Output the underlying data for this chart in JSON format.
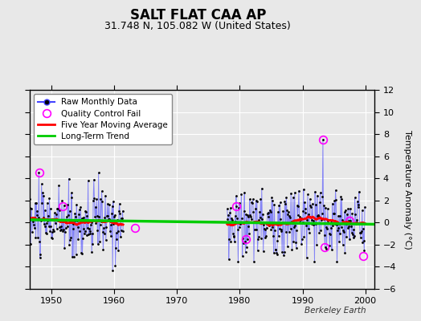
{
  "title": "SALT FLAT CAA AP",
  "subtitle": "31.748 N, 105.082 W (United States)",
  "ylabel": "Temperature Anomaly (°C)",
  "credit": "Berkeley Earth",
  "ylim": [
    -6,
    12
  ],
  "yticks": [
    -6,
    -4,
    -2,
    0,
    2,
    4,
    6,
    8,
    10,
    12
  ],
  "xlim": [
    1946.5,
    2001.5
  ],
  "xticks": [
    1950,
    1960,
    1970,
    1980,
    1990,
    2000
  ],
  "bg_color": "#e8e8e8",
  "plot_bg": "#e8e8e8",
  "grid_color": "#c8c8c8",
  "seg1_start_year": 1946.5,
  "seg1_months": 180,
  "seg2_start_year": 1978.0,
  "seg2_months": 264,
  "qc_fail_points": [
    [
      1948.08,
      4.5
    ],
    [
      1951.8,
      1.5
    ],
    [
      1963.3,
      -0.5
    ],
    [
      1979.5,
      1.5
    ],
    [
      1981.0,
      -1.5
    ],
    [
      1993.25,
      7.5
    ],
    [
      1993.5,
      -2.2
    ],
    [
      1997.5,
      0.2
    ],
    [
      1999.6,
      -3.0
    ]
  ],
  "trend_x": [
    1946.5,
    2001.5
  ],
  "trend_y": [
    0.25,
    -0.15
  ],
  "line_color": "#4444ff",
  "line_alpha": 0.6,
  "dot_color": "#000000",
  "qc_color": "#ff00ff",
  "mavg_color": "#ff0000",
  "trend_color": "#00cc00"
}
